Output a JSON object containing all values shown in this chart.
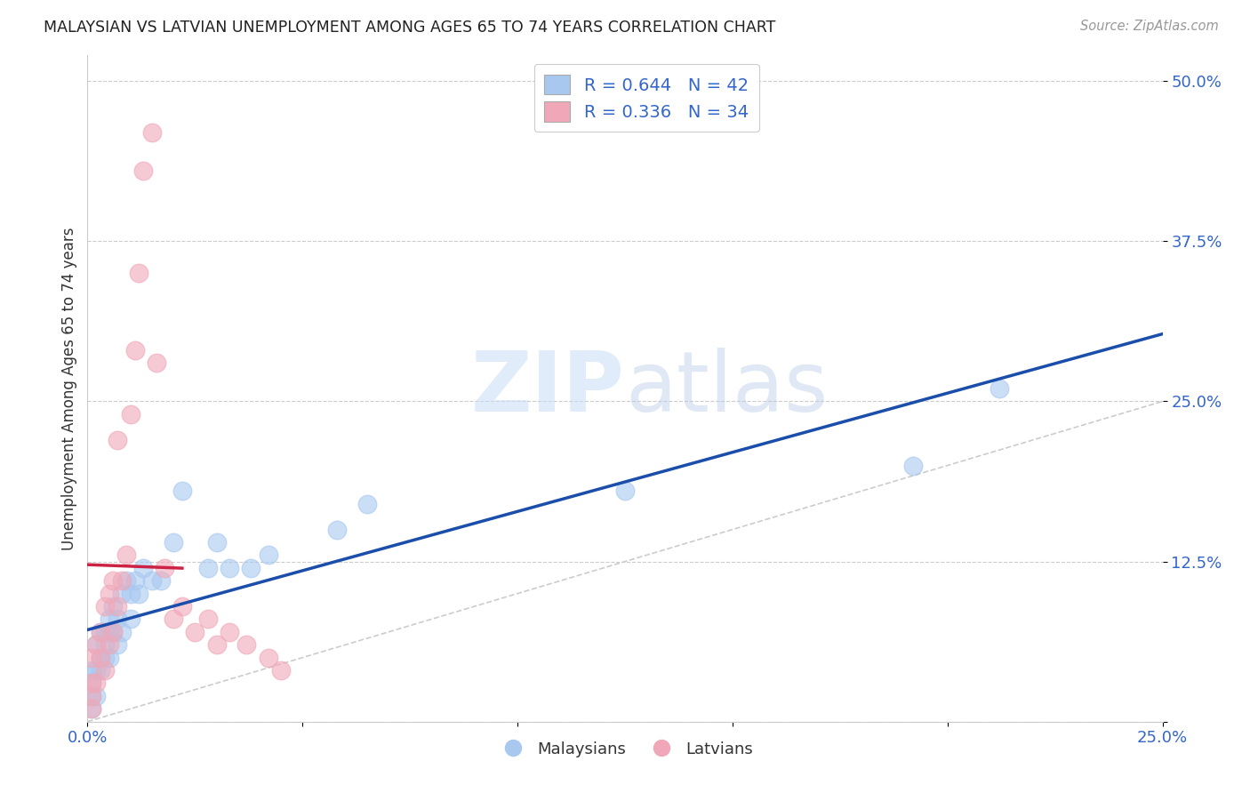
{
  "title": "MALAYSIAN VS LATVIAN UNEMPLOYMENT AMONG AGES 65 TO 74 YEARS CORRELATION CHART",
  "source": "Source: ZipAtlas.com",
  "ylabel": "Unemployment Among Ages 65 to 74 years",
  "xlim": [
    0.0,
    0.25
  ],
  "ylim": [
    0.0,
    0.52
  ],
  "ytick_vals": [
    0.0,
    0.125,
    0.25,
    0.375,
    0.5
  ],
  "ytick_labels": [
    "",
    "12.5%",
    "25.0%",
    "37.5%",
    "50.0%"
  ],
  "xtick_vals": [
    0.0,
    0.05,
    0.1,
    0.15,
    0.2,
    0.25
  ],
  "xtick_labels": [
    "0.0%",
    "",
    "",
    "",
    "",
    "25.0%"
  ],
  "r_malaysian": 0.644,
  "n_malaysian": 42,
  "r_latvian": 0.336,
  "n_latvian": 34,
  "malaysian_color": "#a8c8f0",
  "latvian_color": "#f0a8b8",
  "malaysian_line_color": "#1a4eaa",
  "latvian_line_color": "#cc2244",
  "watermark_zip": "ZIP",
  "watermark_atlas": "atlas",
  "legend_malaysians": "Malaysians",
  "legend_latvians": "Latvians",
  "malaysian_x": [
    0.001,
    0.001,
    0.001,
    0.001,
    0.002,
    0.002,
    0.002,
    0.003,
    0.003,
    0.003,
    0.004,
    0.004,
    0.004,
    0.005,
    0.005,
    0.005,
    0.006,
    0.006,
    0.007,
    0.007,
    0.008,
    0.008,
    0.009,
    0.01,
    0.01,
    0.011,
    0.012,
    0.013,
    0.015,
    0.017,
    0.02,
    0.022,
    0.028,
    0.03,
    0.033,
    0.038,
    0.042,
    0.058,
    0.065,
    0.125,
    0.192,
    0.212
  ],
  "malaysian_y": [
    0.01,
    0.02,
    0.03,
    0.04,
    0.02,
    0.04,
    0.06,
    0.04,
    0.05,
    0.07,
    0.05,
    0.06,
    0.07,
    0.05,
    0.07,
    0.08,
    0.07,
    0.09,
    0.06,
    0.08,
    0.07,
    0.1,
    0.11,
    0.08,
    0.1,
    0.11,
    0.1,
    0.12,
    0.11,
    0.11,
    0.14,
    0.18,
    0.12,
    0.14,
    0.12,
    0.12,
    0.13,
    0.15,
    0.17,
    0.18,
    0.2,
    0.26
  ],
  "latvian_x": [
    0.001,
    0.001,
    0.001,
    0.001,
    0.002,
    0.002,
    0.003,
    0.003,
    0.004,
    0.004,
    0.005,
    0.005,
    0.006,
    0.006,
    0.007,
    0.007,
    0.008,
    0.009,
    0.01,
    0.011,
    0.012,
    0.013,
    0.015,
    0.016,
    0.018,
    0.02,
    0.022,
    0.025,
    0.028,
    0.03,
    0.033,
    0.037,
    0.042,
    0.045
  ],
  "latvian_y": [
    0.01,
    0.02,
    0.03,
    0.05,
    0.03,
    0.06,
    0.05,
    0.07,
    0.04,
    0.09,
    0.06,
    0.1,
    0.07,
    0.11,
    0.09,
    0.22,
    0.11,
    0.13,
    0.24,
    0.29,
    0.35,
    0.43,
    0.46,
    0.28,
    0.12,
    0.08,
    0.09,
    0.07,
    0.08,
    0.06,
    0.07,
    0.06,
    0.05,
    0.04
  ]
}
